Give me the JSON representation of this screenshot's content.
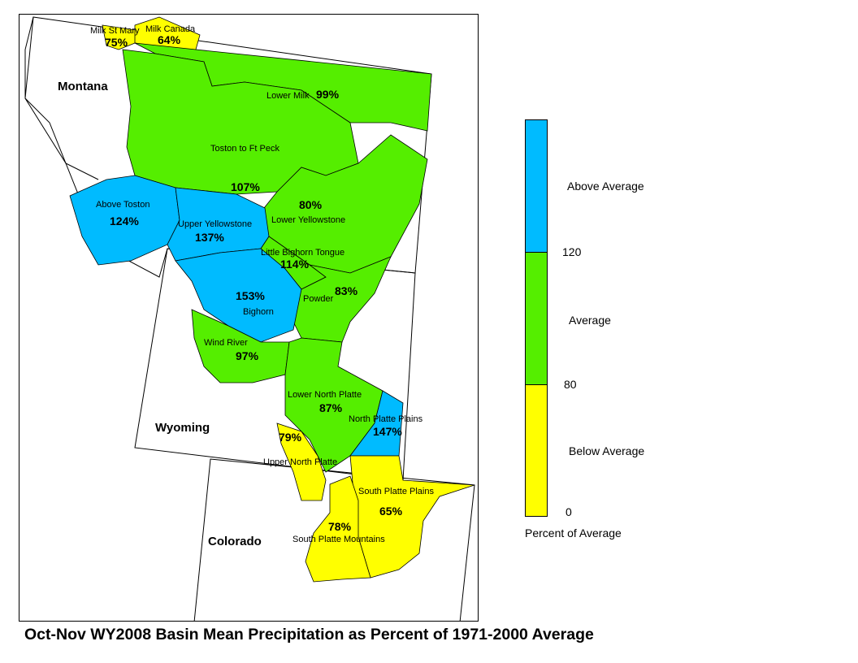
{
  "caption": "Oct-Nov WY2008 Basin Mean Precipitation as Percent of 1971-2000 Average",
  "states": [
    {
      "name": "Montana"
    },
    {
      "name": "Wyoming"
    },
    {
      "name": "Colorado"
    }
  ],
  "basins": [
    {
      "name": "Milk St Mary",
      "percent": "75%",
      "category": "below"
    },
    {
      "name": "Milk Canada",
      "percent": "64%",
      "category": "below"
    },
    {
      "name": "Lower Milk",
      "percent": "99%",
      "category": "average"
    },
    {
      "name": "Toston to Ft Peck",
      "percent": "107%",
      "category": "average"
    },
    {
      "name": "Above Toston",
      "percent": "124%",
      "category": "above"
    },
    {
      "name": "Upper Yellowstone",
      "percent": "137%",
      "category": "above"
    },
    {
      "name": "Lower Yellowstone",
      "percent": "80%",
      "category": "average"
    },
    {
      "name": "Little Bighorn Tongue",
      "percent": "114%",
      "category": "average"
    },
    {
      "name": "Powder",
      "percent": "83%",
      "category": "average"
    },
    {
      "name": "Bighorn",
      "percent": "153%",
      "category": "above"
    },
    {
      "name": "Wind River",
      "percent": "97%",
      "category": "average"
    },
    {
      "name": "Lower North Platte",
      "percent": "87%",
      "category": "average"
    },
    {
      "name": "North Platte Plains",
      "percent": "147%",
      "category": "above"
    },
    {
      "name": "Upper North Platte",
      "percent": "79%",
      "category": "below"
    },
    {
      "name": "South Platte Plains",
      "percent": "65%",
      "category": "below"
    },
    {
      "name": "South Platte Mountains",
      "percent": "78%",
      "category": "below"
    }
  ],
  "legend": {
    "title": "Percent of Average",
    "classes": [
      {
        "label": "Above Average",
        "color": "#00bbff"
      },
      {
        "label": "Average",
        "color": "#55ee00"
      },
      {
        "label": "Below Average",
        "color": "#ffff00"
      }
    ],
    "breaks": [
      "120",
      "80",
      "0"
    ]
  },
  "colors": {
    "above": "#00bbff",
    "average": "#55ee00",
    "below": "#ffff00",
    "outline": "#000000"
  }
}
